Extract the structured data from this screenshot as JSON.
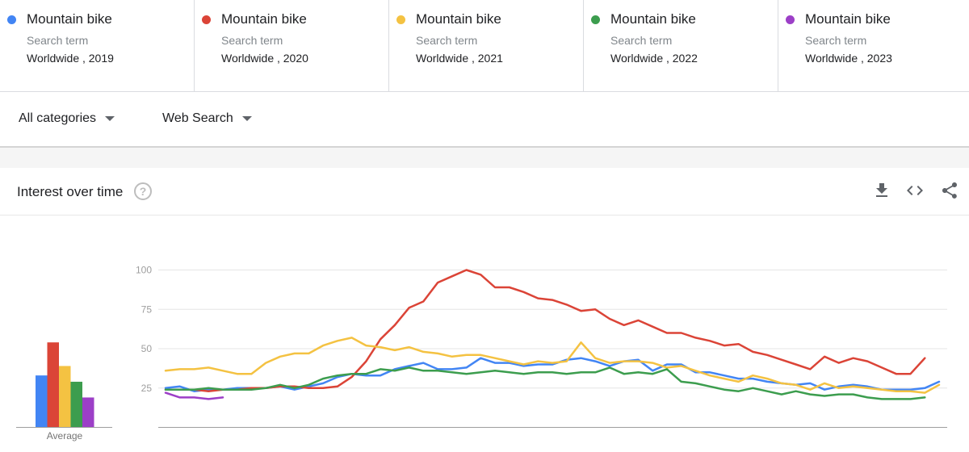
{
  "terms": [
    {
      "name": "Mountain bike",
      "kind": "Search term",
      "where": "Worldwide , 2019",
      "color": "#4285f4"
    },
    {
      "name": "Mountain bike",
      "kind": "Search term",
      "where": "Worldwide , 2020",
      "color": "#db4437"
    },
    {
      "name": "Mountain bike",
      "kind": "Search term",
      "where": "Worldwide , 2021",
      "color": "#f4c242"
    },
    {
      "name": "Mountain bike",
      "kind": "Search term",
      "where": "Worldwide , 2022",
      "color": "#3c9d4e"
    },
    {
      "name": "Mountain bike",
      "kind": "Search term",
      "where": "Worldwide , 2023",
      "color": "#9c3fc7"
    }
  ],
  "filters": {
    "category": "All categories",
    "search_type": "Web Search"
  },
  "panel": {
    "title": "Interest over time",
    "help_glyph": "?"
  },
  "actions": [
    "download-icon",
    "embed-icon",
    "share-icon"
  ],
  "chart_data": {
    "type": "line",
    "title": "",
    "xlabel": "",
    "ylabel": "",
    "ylim": [
      0,
      100
    ],
    "yticks": [
      100,
      75,
      50,
      25
    ],
    "grid": true,
    "average": {
      "label": "Average",
      "values": [
        33,
        54,
        39,
        29,
        19
      ],
      "colors": [
        "#4285f4",
        "#db4437",
        "#f4c242",
        "#3c9d4e",
        "#9c3fc7"
      ]
    },
    "series": [
      {
        "color": "#4285f4",
        "values": [
          25,
          26,
          23,
          24,
          24,
          25,
          25,
          25,
          26,
          24,
          26,
          28,
          32,
          34,
          33,
          33,
          37,
          39,
          41,
          37,
          37,
          38,
          44,
          41,
          41,
          39,
          40,
          40,
          43,
          44,
          42,
          39,
          42,
          43,
          36,
          40,
          40,
          35,
          35,
          33,
          31,
          31,
          29,
          28,
          27,
          28,
          24,
          26,
          27,
          26,
          24,
          24,
          24,
          25,
          29
        ]
      },
      {
        "color": "#db4437",
        "values": [
          24,
          24,
          24,
          23,
          24,
          24,
          25,
          25,
          26,
          26,
          25,
          25,
          26,
          32,
          42,
          56,
          65,
          76,
          80,
          92,
          96,
          100,
          97,
          89,
          89,
          86,
          82,
          81,
          78,
          74,
          75,
          69,
          65,
          68,
          64,
          60,
          60,
          57,
          55,
          52,
          53,
          48,
          46,
          43,
          40,
          37,
          45,
          41,
          44,
          42,
          38,
          34,
          34,
          44
        ]
      },
      {
        "color": "#f4c242",
        "values": [
          36,
          37,
          37,
          38,
          36,
          34,
          34,
          41,
          45,
          47,
          47,
          52,
          55,
          57,
          52,
          51,
          49,
          51,
          48,
          47,
          45,
          46,
          46,
          44,
          42,
          40,
          42,
          41,
          42,
          54,
          44,
          41,
          42,
          42,
          41,
          38,
          39,
          36,
          33,
          31,
          29,
          33,
          31,
          28,
          27,
          24,
          28,
          25,
          26,
          25,
          24,
          23,
          23,
          22,
          27
        ]
      },
      {
        "color": "#3c9d4e",
        "values": [
          24,
          24,
          24,
          25,
          24,
          24,
          24,
          25,
          27,
          25,
          27,
          31,
          33,
          34,
          34,
          37,
          36,
          38,
          36,
          36,
          35,
          34,
          35,
          36,
          35,
          34,
          35,
          35,
          34,
          35,
          35,
          38,
          34,
          35,
          34,
          37,
          29,
          28,
          26,
          24,
          23,
          25,
          23,
          21,
          23,
          21,
          20,
          21,
          21,
          19,
          18,
          18,
          18,
          19
        ]
      },
      {
        "color": "#9c3fc7",
        "values": [
          22,
          19,
          19,
          18,
          19
        ]
      }
    ]
  }
}
